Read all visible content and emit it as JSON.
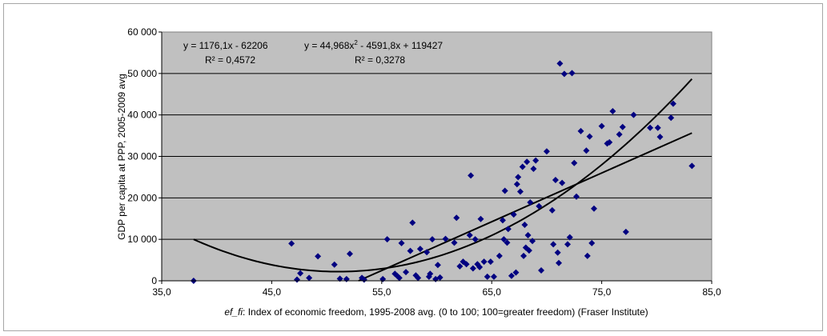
{
  "chart_data": {
    "type": "scatter",
    "xlabel_italic": "ef_fi",
    "xlabel_rest": ": Index of economic freedom, 1995-2008 avg. (0 to 100; 100=greater freedom) (Fraser Institute)",
    "ylabel": "GDP per capita at PPP, 2005-2009 avg",
    "xlim": [
      35,
      85
    ],
    "ylim": [
      0,
      60000
    ],
    "x_ticks": [
      "35,0",
      "45,0",
      "55,0",
      "65,0",
      "75,0",
      "85,0"
    ],
    "y_ticks": [
      "0",
      "10 000",
      "20 000",
      "30 000",
      "40 000",
      "50 000",
      "60 000"
    ],
    "x_tick_values": [
      35,
      45,
      55,
      65,
      75,
      85
    ],
    "y_tick_values": [
      0,
      10000,
      20000,
      30000,
      40000,
      50000,
      60000
    ],
    "grid": "horizontal",
    "plot_background": "#c0c0c0",
    "marker_color": "#000080",
    "trendline_color": "#000000",
    "linear_equation": "y = 1176,1x - 62206",
    "linear_r2": "R² = 0,4572",
    "poly_equation_part1": "y = 44,968x",
    "poly_equation_sup": "2",
    "poly_equation_part2": " - 4591,8x + 119427",
    "poly_r2": "R² = 0,3278",
    "linear_trend": {
      "slope": 1176.1,
      "intercept": -62206
    },
    "poly_trend": {
      "a": 44.968,
      "b": -4591.8,
      "c": 119427
    },
    "points": [
      [
        37.9,
        0
      ],
      [
        46.8,
        9000
      ],
      [
        47.3,
        300
      ],
      [
        47.6,
        1800
      ],
      [
        48.4,
        700
      ],
      [
        49.2,
        5900
      ],
      [
        50.7,
        3900
      ],
      [
        51.2,
        500
      ],
      [
        51.8,
        400
      ],
      [
        52.1,
        6500
      ],
      [
        53.2,
        700
      ],
      [
        53.4,
        300
      ],
      [
        55.1,
        400
      ],
      [
        55.5,
        10000
      ],
      [
        56.2,
        1700
      ],
      [
        56.4,
        1200
      ],
      [
        56.6,
        700
      ],
      [
        56.8,
        9100
      ],
      [
        57.2,
        2100
      ],
      [
        57.6,
        7200
      ],
      [
        57.8,
        14000
      ],
      [
        58.1,
        1300
      ],
      [
        58.3,
        700
      ],
      [
        58.5,
        7700
      ],
      [
        59.1,
        6900
      ],
      [
        59.3,
        1000
      ],
      [
        59.4,
        1700
      ],
      [
        59.6,
        10000
      ],
      [
        59.9,
        400
      ],
      [
        60.1,
        3800
      ],
      [
        60.3,
        800
      ],
      [
        60.8,
        10100
      ],
      [
        61.6,
        9200
      ],
      [
        61.8,
        15200
      ],
      [
        62.1,
        3500
      ],
      [
        62.4,
        4600
      ],
      [
        62.7,
        4000
      ],
      [
        63.0,
        11000
      ],
      [
        63.1,
        25400
      ],
      [
        63.3,
        3000
      ],
      [
        63.5,
        10000
      ],
      [
        63.7,
        4000
      ],
      [
        63.9,
        3300
      ],
      [
        64.0,
        14900
      ],
      [
        64.3,
        4600
      ],
      [
        64.6,
        1000
      ],
      [
        64.9,
        4600
      ],
      [
        65.2,
        1000
      ],
      [
        65.7,
        6000
      ],
      [
        66.0,
        14600
      ],
      [
        66.1,
        10000
      ],
      [
        66.2,
        21700
      ],
      [
        66.4,
        9200
      ],
      [
        66.5,
        12500
      ],
      [
        66.8,
        1200
      ],
      [
        67.0,
        16000
      ],
      [
        67.2,
        2000
      ],
      [
        67.3,
        23300
      ],
      [
        67.4,
        25000
      ],
      [
        67.6,
        21500
      ],
      [
        67.8,
        27500
      ],
      [
        67.9,
        6000
      ],
      [
        68.0,
        13500
      ],
      [
        68.1,
        8000
      ],
      [
        68.2,
        28700
      ],
      [
        68.3,
        11000
      ],
      [
        68.4,
        7300
      ],
      [
        68.5,
        18900
      ],
      [
        68.7,
        9600
      ],
      [
        68.8,
        27000
      ],
      [
        69.0,
        29000
      ],
      [
        69.3,
        18000
      ],
      [
        69.5,
        2500
      ],
      [
        70.0,
        31200
      ],
      [
        70.5,
        17000
      ],
      [
        70.6,
        8800
      ],
      [
        70.8,
        24300
      ],
      [
        71.0,
        6800
      ],
      [
        71.1,
        4300
      ],
      [
        71.2,
        52400
      ],
      [
        71.4,
        23600
      ],
      [
        71.6,
        49900
      ],
      [
        71.9,
        8800
      ],
      [
        72.1,
        10500
      ],
      [
        72.3,
        50100
      ],
      [
        72.5,
        28400
      ],
      [
        72.7,
        20300
      ],
      [
        73.1,
        36100
      ],
      [
        73.6,
        31400
      ],
      [
        73.7,
        6000
      ],
      [
        73.9,
        34800
      ],
      [
        74.1,
        9100
      ],
      [
        74.3,
        17400
      ],
      [
        75.0,
        37300
      ],
      [
        75.5,
        33100
      ],
      [
        75.7,
        33400
      ],
      [
        76.0,
        40900
      ],
      [
        76.6,
        35300
      ],
      [
        76.9,
        37100
      ],
      [
        77.2,
        11800
      ],
      [
        77.9,
        40000
      ],
      [
        79.4,
        36900
      ],
      [
        80.1,
        36900
      ],
      [
        80.3,
        34700
      ],
      [
        81.3,
        39300
      ],
      [
        81.5,
        42700
      ],
      [
        83.2,
        27700
      ]
    ]
  }
}
